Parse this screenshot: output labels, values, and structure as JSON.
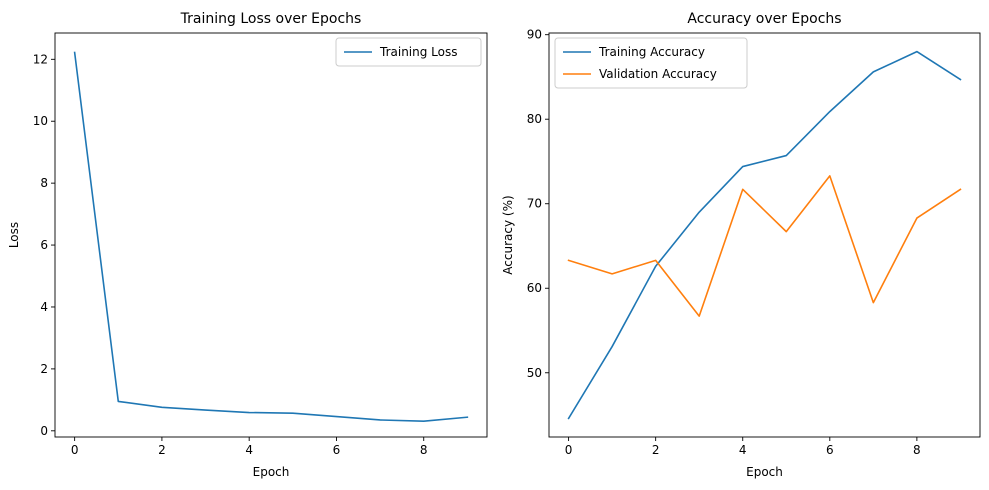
{
  "figure": {
    "background": "#ffffff"
  },
  "chart_data": [
    {
      "type": "line",
      "title": "Training Loss over Epochs",
      "xlabel": "Epoch",
      "ylabel": "Loss",
      "xlim": [
        -0.45,
        9.45
      ],
      "ylim": [
        -0.2,
        12.85
      ],
      "xticks": [
        0,
        2,
        4,
        6,
        8
      ],
      "yticks": [
        0,
        2,
        4,
        6,
        8,
        10,
        12
      ],
      "grid": false,
      "legend": "top-right",
      "x": [
        0,
        1,
        2,
        3,
        4,
        5,
        6,
        7,
        8,
        9
      ],
      "series": [
        {
          "name": "Training Loss",
          "color": "#1f77b4",
          "values": [
            12.22,
            0.95,
            0.76,
            0.67,
            0.59,
            0.57,
            0.46,
            0.35,
            0.31,
            0.44
          ]
        }
      ]
    },
    {
      "type": "line",
      "title": "Accuracy over Epochs",
      "xlabel": "Epoch",
      "ylabel": "Accuracy (%)",
      "xlim": [
        -0.45,
        9.45
      ],
      "ylim": [
        42.4,
        90.2
      ],
      "xticks": [
        0,
        2,
        4,
        6,
        8
      ],
      "yticks": [
        50,
        60,
        70,
        80,
        90
      ],
      "grid": false,
      "legend": "top-left",
      "x": [
        0,
        1,
        2,
        3,
        4,
        5,
        6,
        7,
        8,
        9
      ],
      "series": [
        {
          "name": "Training Accuracy",
          "color": "#1f77b4",
          "values": [
            44.6,
            53.1,
            62.6,
            69.0,
            74.4,
            75.7,
            80.9,
            85.6,
            88.0,
            84.7
          ]
        },
        {
          "name": "Validation Accuracy",
          "color": "#ff7f0e",
          "values": [
            63.3,
            61.7,
            63.3,
            56.7,
            71.7,
            66.7,
            73.3,
            58.3,
            68.3,
            71.7
          ]
        }
      ]
    }
  ]
}
